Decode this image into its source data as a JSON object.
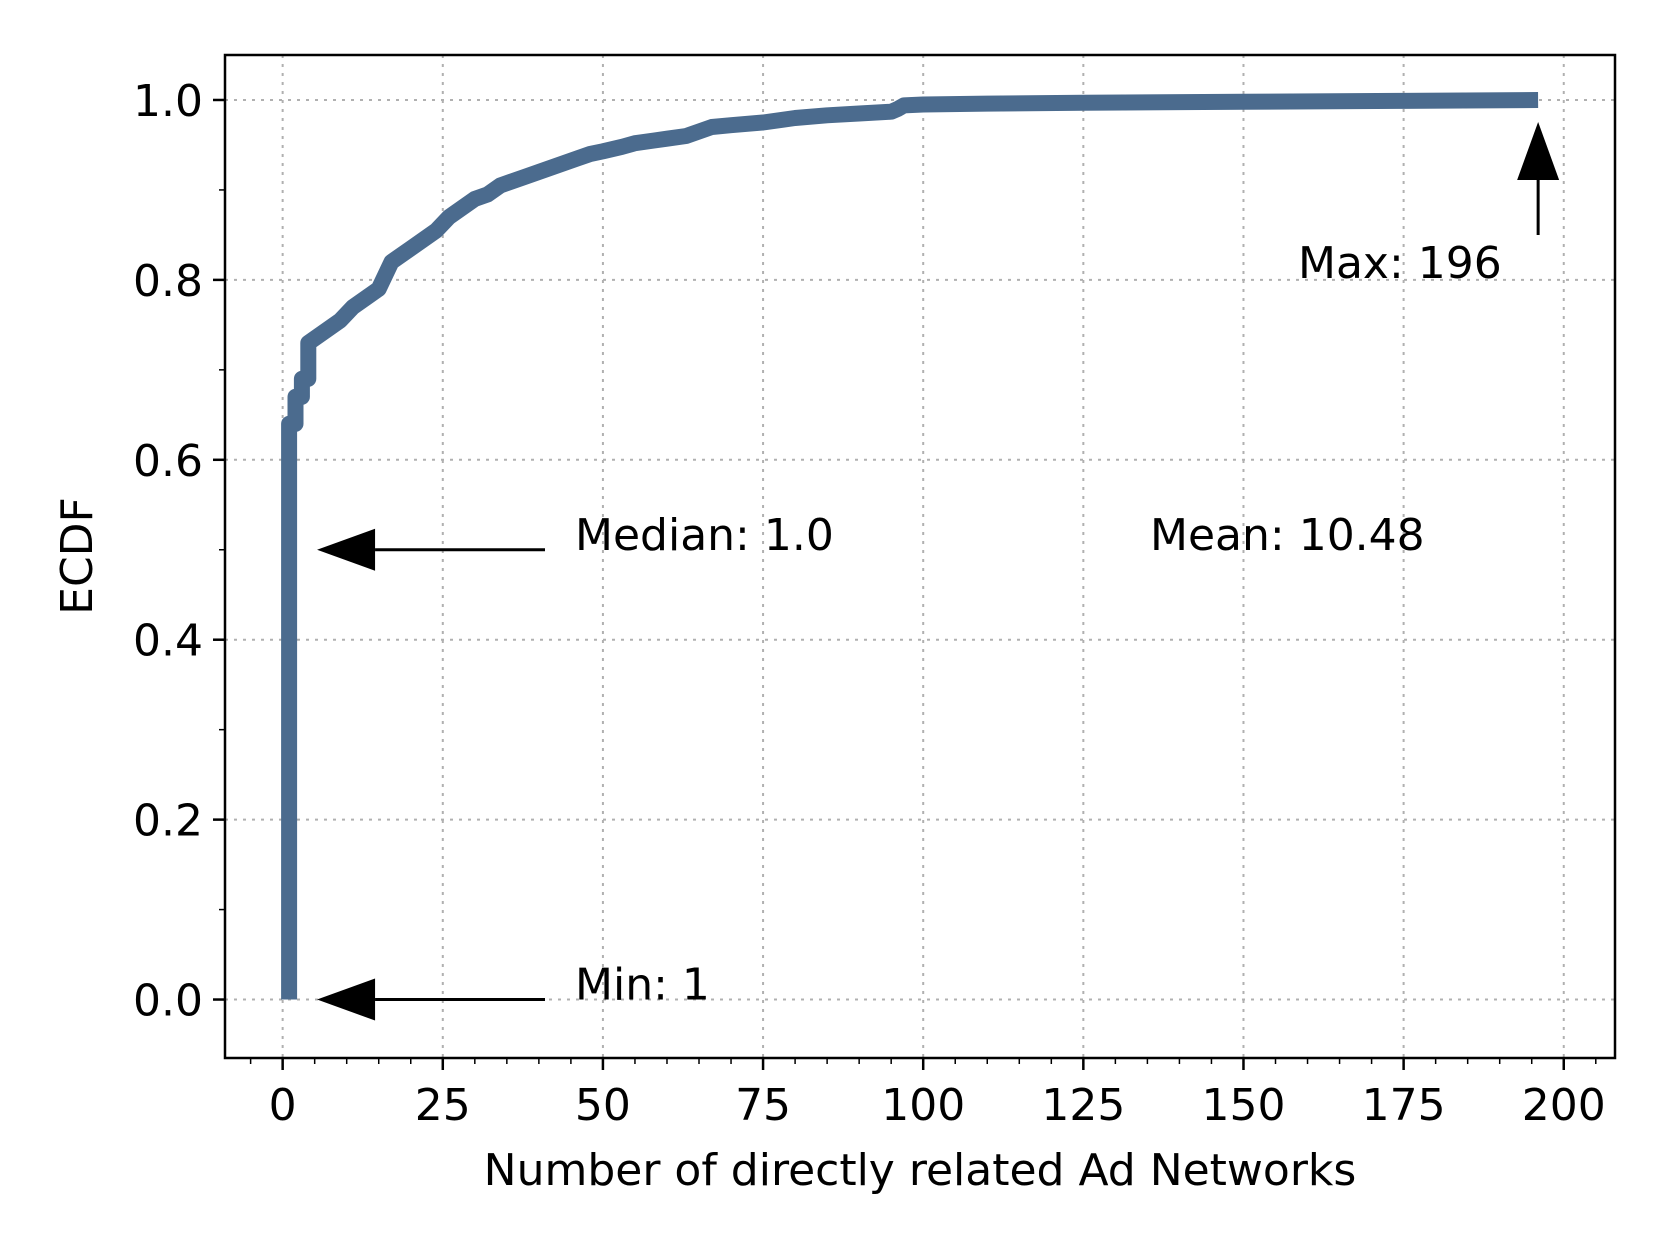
{
  "chart_data": {
    "type": "line",
    "xlabel": "Number of directly related Ad Networks",
    "ylabel": "ECDF",
    "xlim": [
      -9,
      208
    ],
    "ylim": [
      -0.065,
      1.05
    ],
    "xticks": [
      "0",
      "25",
      "50",
      "75",
      "100",
      "125",
      "150",
      "175",
      "200"
    ],
    "yticks": [
      "0.0",
      "0.2",
      "0.4",
      "0.6",
      "0.8",
      "1.0"
    ],
    "grid": true,
    "line_color": "#4b6b8e",
    "series": [
      {
        "x": [
          1,
          1,
          2,
          2,
          3,
          3,
          4,
          4,
          5,
          7,
          9,
          11,
          13,
          15,
          16,
          17,
          18,
          20,
          22,
          24,
          26,
          28,
          30,
          32,
          34,
          36,
          38,
          40,
          42,
          44,
          46,
          48,
          50,
          53,
          55,
          58,
          60,
          63,
          65,
          67,
          70,
          75,
          80,
          85,
          90,
          95,
          96,
          97,
          100,
          110,
          125,
          150,
          175,
          196
        ],
        "y": [
          0.0,
          0.64,
          0.64,
          0.67,
          0.67,
          0.69,
          0.69,
          0.73,
          0.735,
          0.745,
          0.755,
          0.77,
          0.78,
          0.79,
          0.805,
          0.82,
          0.825,
          0.835,
          0.845,
          0.855,
          0.87,
          0.88,
          0.89,
          0.895,
          0.905,
          0.91,
          0.915,
          0.92,
          0.925,
          0.93,
          0.935,
          0.94,
          0.943,
          0.948,
          0.952,
          0.955,
          0.957,
          0.96,
          0.965,
          0.97,
          0.972,
          0.975,
          0.98,
          0.983,
          0.985,
          0.987,
          0.99,
          0.994,
          0.995,
          0.996,
          0.997,
          0.998,
          0.999,
          1.0
        ]
      }
    ],
    "annotations": [
      {
        "label": "Min: 1",
        "x": 1,
        "y": 0.0
      },
      {
        "label": "Median: 1.0",
        "x": 1,
        "y": 0.5
      },
      {
        "label": "Mean: 10.48"
      },
      {
        "label": "Max: 196",
        "x": 196,
        "y": 1.0
      }
    ]
  }
}
